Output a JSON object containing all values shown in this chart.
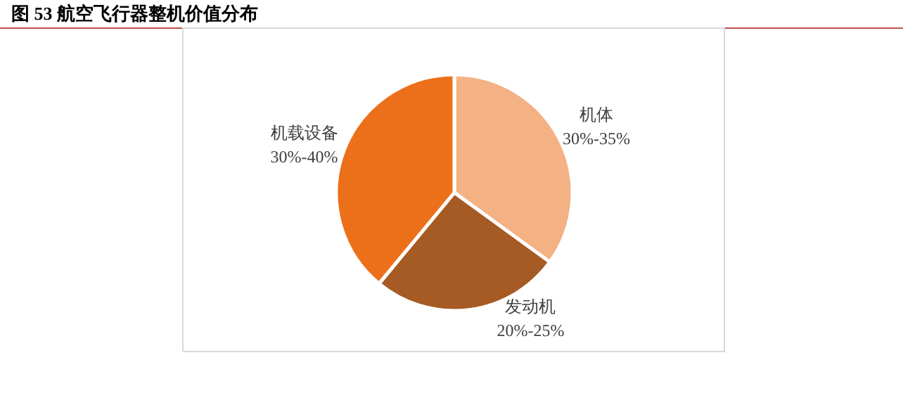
{
  "chart_data": {
    "type": "pie",
    "title": "图 53 航空飞行器整机价值分布",
    "categories": [
      "机体",
      "发动机",
      "机载设备"
    ],
    "values": [
      35,
      26,
      39
    ],
    "colors": [
      "#f4b183",
      "#a65a24",
      "#ec7019"
    ],
    "annotations": [
      {
        "text": "30%-35%",
        "x": "机体"
      },
      {
        "text": "20%-25%",
        "x": "发动机"
      },
      {
        "text": "30%-40%",
        "x": "机载设备"
      }
    ]
  }
}
